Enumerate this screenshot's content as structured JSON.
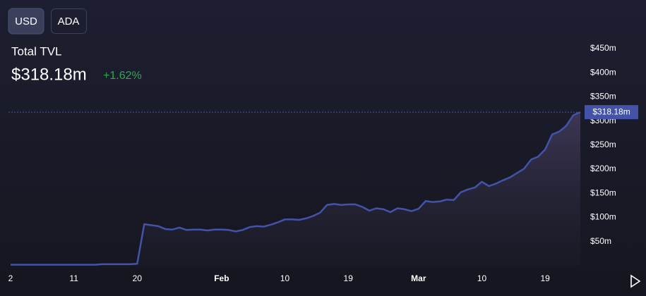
{
  "header": {
    "buttons": [
      "USD",
      "ADA"
    ],
    "title": "Total TVL",
    "value": "$318.18m",
    "change": "+1.62%"
  },
  "chart_data": {
    "type": "area",
    "current_label": "$318.18m",
    "categories": [
      "2",
      null,
      null,
      null,
      null,
      null,
      null,
      null,
      null,
      "11",
      null,
      null,
      null,
      null,
      null,
      null,
      null,
      null,
      "20",
      null,
      null,
      null,
      null,
      null,
      null,
      null,
      null,
      null,
      null,
      null,
      "Feb",
      null,
      null,
      null,
      null,
      null,
      null,
      null,
      null,
      "10",
      null,
      null,
      null,
      null,
      null,
      null,
      null,
      null,
      "19",
      null,
      null,
      null,
      null,
      null,
      null,
      null,
      null,
      null,
      "Mar",
      null,
      null,
      null,
      null,
      null,
      null,
      null,
      null,
      "10",
      null,
      null,
      null,
      null,
      null,
      null,
      null,
      null,
      "19",
      null,
      null,
      null,
      null,
      null
    ],
    "series": [
      {
        "color": "#4453a8",
        "values": [
          2,
          2,
          2,
          2,
          2,
          2,
          2,
          2,
          2,
          2,
          2,
          2,
          2,
          3,
          3,
          3,
          3,
          3,
          4,
          86,
          84,
          82,
          76,
          75,
          79,
          74,
          75,
          75,
          73,
          75,
          75,
          74,
          71,
          74,
          80,
          82,
          81,
          85,
          90,
          96,
          96,
          95,
          98,
          103,
          110,
          126,
          128,
          126,
          127,
          127,
          122,
          114,
          119,
          117,
          111,
          119,
          117,
          113,
          118,
          134,
          132,
          133,
          137,
          136,
          152,
          158,
          162,
          174,
          165,
          170,
          177,
          183,
          192,
          201,
          220,
          226,
          241,
          272,
          278,
          290,
          312,
          318.18
        ]
      }
    ],
    "ylim": [
      0,
      463
    ],
    "yticks": [
      {
        "value": 50,
        "label": "$50m"
      },
      {
        "value": 100,
        "label": "$100m"
      },
      {
        "value": 150,
        "label": "$150m"
      },
      {
        "value": 200,
        "label": "$200m"
      },
      {
        "value": 250,
        "label": "$250m"
      },
      {
        "value": 300,
        "label": "$300m"
      },
      {
        "value": 350,
        "label": "$350m"
      },
      {
        "value": 400,
        "label": "$400m"
      },
      {
        "value": 450,
        "label": "$450m"
      }
    ]
  }
}
